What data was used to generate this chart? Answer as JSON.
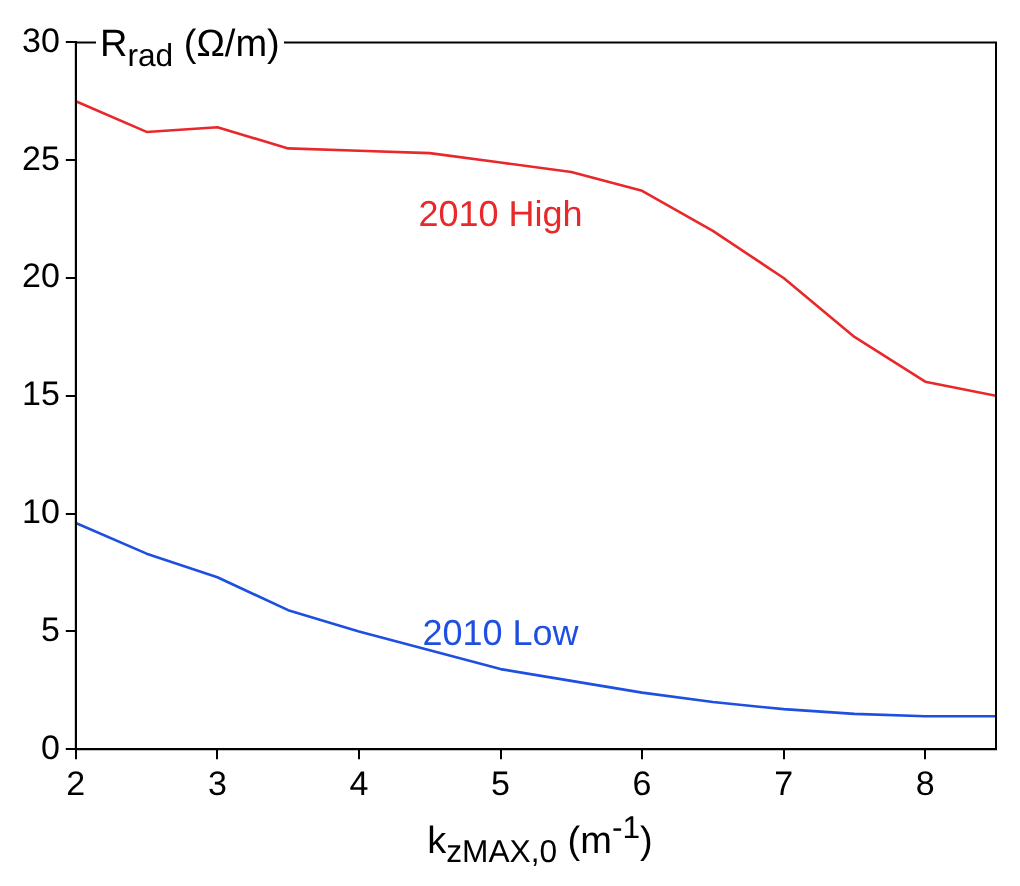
{
  "chart_data": {
    "type": "line",
    "xlabel": "k$_{zMAX,0}$ (m$^{-1}$)",
    "ylabel": "R$_{rad}$ (Ω/m)",
    "x": [
      2,
      2.5,
      3,
      3.5,
      4,
      4.5,
      5,
      5.5,
      6,
      6.5,
      7,
      7.5,
      8,
      8.5
    ],
    "series": [
      {
        "name": "2010 High",
        "color": "#e8282a",
        "values": [
          27.5,
          26.2,
          26.4,
          25.5,
          25.4,
          25.3,
          24.9,
          24.5,
          23.7,
          22.0,
          20.0,
          17.5,
          15.6,
          15.0
        ]
      },
      {
        "name": "2010 Low",
        "color": "#1f4fe0",
        "values": [
          9.6,
          8.3,
          7.3,
          5.9,
          5.0,
          4.2,
          3.4,
          2.9,
          2.4,
          2.0,
          1.7,
          1.5,
          1.4,
          1.4
        ]
      }
    ],
    "xlim": [
      2,
      8.5
    ],
    "xticks": [
      2,
      3,
      4,
      5,
      6,
      7,
      8
    ],
    "ylim": [
      0,
      30
    ],
    "yticks": [
      0,
      5,
      10,
      15,
      20,
      25,
      30
    ],
    "marker": "none",
    "line_style": "solid"
  }
}
